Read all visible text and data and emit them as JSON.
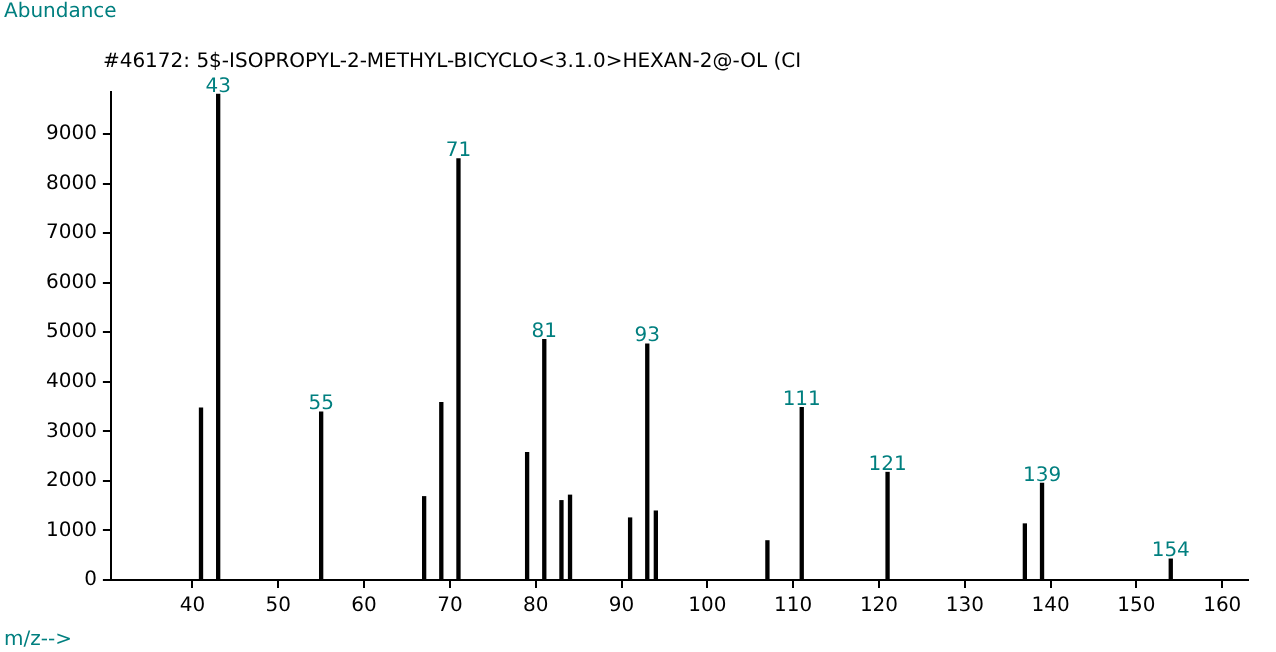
{
  "chart_data": {
    "type": "bar",
    "title": "#46172: 5$-ISOPROPYL-2-METHYL-BICYCLO<3.1.0>HEXAN-2@-OL (CI",
    "ylabel": "Abundance",
    "xlabel": "m/z-->",
    "x": [
      41,
      43,
      55,
      67,
      69,
      71,
      79,
      81,
      83,
      84,
      91,
      93,
      94,
      107,
      111,
      121,
      137,
      139,
      154
    ],
    "values": [
      3470,
      9800,
      3390,
      1680,
      3580,
      8500,
      2570,
      4850,
      1600,
      1710,
      1250,
      4760,
      1390,
      790,
      3480,
      2170,
      1130,
      1950,
      420
    ],
    "annotations": [
      {
        "text": "43",
        "x": 43,
        "y": 9800
      },
      {
        "text": "55",
        "x": 55,
        "y": 3390
      },
      {
        "text": "71",
        "x": 71,
        "y": 8500
      },
      {
        "text": "81",
        "x": 81,
        "y": 4850
      },
      {
        "text": "93",
        "x": 93,
        "y": 4760
      },
      {
        "text": "111",
        "x": 111,
        "y": 3480
      },
      {
        "text": "121",
        "x": 121,
        "y": 2170
      },
      {
        "text": "139",
        "x": 139,
        "y": 1950
      },
      {
        "text": "154",
        "x": 154,
        "y": 420
      }
    ],
    "color": "#000000",
    "xlim": [
      30.5,
      163
    ],
    "xticks": [
      40,
      50,
      60,
      70,
      80,
      90,
      100,
      110,
      120,
      130,
      140,
      150,
      160
    ],
    "ylim": [
      0,
      9850
    ],
    "yticks": [
      0,
      1000,
      2000,
      3000,
      4000,
      5000,
      6000,
      7000,
      8000,
      9000
    ],
    "grid": false,
    "legend": false
  }
}
